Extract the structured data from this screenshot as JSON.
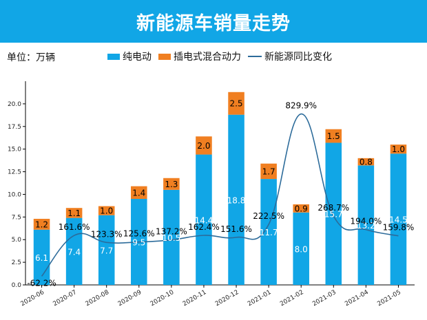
{
  "header": {
    "title": "新能源车销量走势"
  },
  "unit_label": "单位：万辆",
  "colors": {
    "header_bg": "#11a6e6",
    "bev": "#11a6e6",
    "phev": "#f07f21",
    "growth": "#2c6b9a"
  },
  "chart_data": {
    "type": "bar",
    "stacked": true,
    "categories": [
      "2020-06",
      "2020-07",
      "2020-08",
      "2020-09",
      "2020-10",
      "2020-11",
      "2020-12",
      "2021-01",
      "2021-02",
      "2021-03",
      "2021-04",
      "2021-05"
    ],
    "series": [
      {
        "name": "纯电动",
        "type": "bar",
        "values": [
          6.1,
          7.4,
          7.7,
          9.5,
          10.5,
          14.4,
          18.8,
          11.7,
          8.0,
          15.7,
          13.2,
          14.5
        ],
        "labels": [
          "6.1",
          "7.4",
          "7.7",
          "9.5",
          "10.5",
          "14.4",
          "18.8",
          "11.7",
          "8.0",
          "15.7",
          "13.2",
          "14.5"
        ]
      },
      {
        "name": "插电式混合动力",
        "type": "bar",
        "values": [
          1.2,
          1.1,
          1.0,
          1.4,
          1.3,
          2.0,
          2.5,
          1.7,
          0.9,
          1.5,
          0.8,
          1.0
        ],
        "labels": [
          "1.2",
          "1.1",
          "1.0",
          "1.4",
          "1.3",
          "2.0",
          "2.5",
          "1.7",
          "0.9",
          "1.5",
          "0.8",
          "1.0"
        ]
      },
      {
        "name": "新能源同比变化",
        "type": "line",
        "unit": "%",
        "values": [
          -62.2,
          161.6,
          123.3,
          125.6,
          137.2,
          162.4,
          151.6,
          222.5,
          829.9,
          268.7,
          194.0,
          159.8
        ],
        "labels": [
          "-62.2%",
          "161.6%",
          "123.3%",
          "125.6%",
          "137.2%",
          "162.4%",
          "151.6%",
          "222.5%",
          "829.9%",
          "268.7%",
          "194.0%",
          "159.8%"
        ]
      }
    ],
    "ylim": [
      0,
      22.5
    ],
    "yticks": [
      "0.0",
      "2.5",
      "5.0",
      "7.5",
      "10.0",
      "12.5",
      "15.0",
      "17.5",
      "20.0"
    ],
    "ytick_values": [
      0,
      2.5,
      5,
      7.5,
      10,
      12.5,
      15,
      17.5,
      20
    ],
    "xlabel": "",
    "ylabel": ""
  }
}
